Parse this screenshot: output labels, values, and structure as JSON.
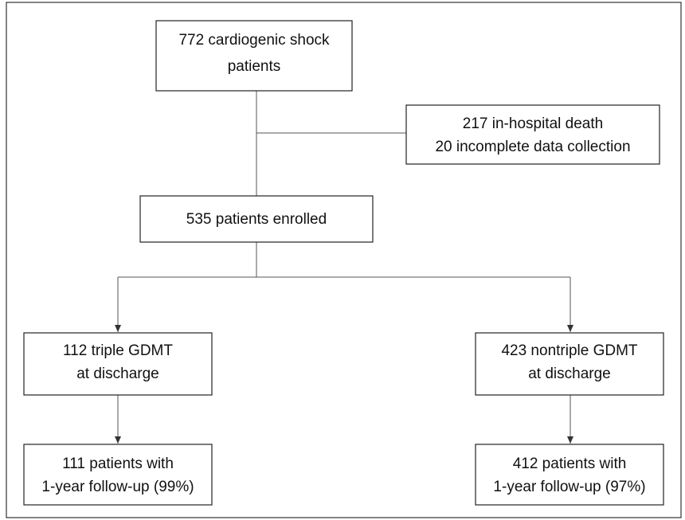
{
  "nodes": [
    {
      "lines": [
        "772 cardiogenic shock",
        "patients"
      ]
    },
    {
      "lines": [
        "217 in-hospital death",
        "20 incomplete data collection"
      ]
    },
    {
      "lines": [
        "535 patients enrolled"
      ]
    },
    {
      "lines": [
        "112 triple GDMT",
        "at discharge"
      ]
    },
    {
      "lines": [
        "423 nontriple GDMT",
        "at discharge"
      ]
    },
    {
      "lines": [
        "111 patients with",
        "1-year follow-up (99%)"
      ]
    },
    {
      "lines": [
        "412 patients with",
        "1-year follow-up (97%)"
      ]
    }
  ]
}
